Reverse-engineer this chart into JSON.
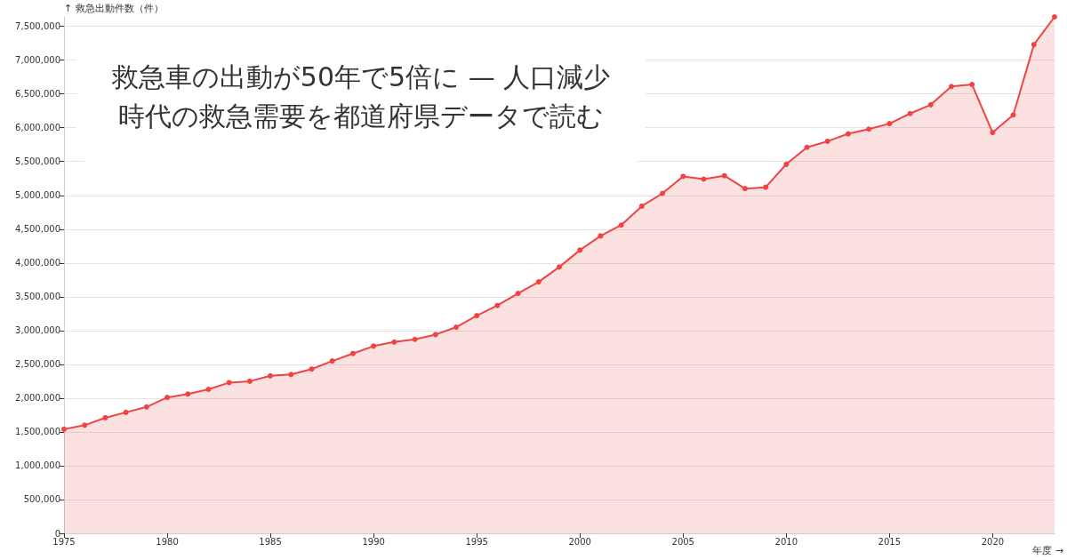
{
  "chart_data": {
    "type": "area",
    "title": "救急車の出動が50年で5倍に — 人口減少時代の救急需要を都道府県データで読む",
    "xlabel": "年度 →",
    "ylabel": "↑ 救急出動件数（件）",
    "x": [
      1975,
      1976,
      1977,
      1978,
      1979,
      1980,
      1981,
      1982,
      1983,
      1984,
      1985,
      1986,
      1987,
      1988,
      1989,
      1990,
      1991,
      1992,
      1993,
      1994,
      1995,
      1996,
      1997,
      1998,
      1999,
      2000,
      2001,
      2002,
      2003,
      2004,
      2005,
      2006,
      2007,
      2008,
      2009,
      2010,
      2011,
      2012,
      2013,
      2014,
      2015,
      2016,
      2017,
      2018,
      2019,
      2020,
      2021,
      2022,
      2023
    ],
    "values": [
      1540000,
      1600000,
      1710000,
      1790000,
      1870000,
      2010000,
      2060000,
      2130000,
      2230000,
      2250000,
      2330000,
      2350000,
      2430000,
      2550000,
      2660000,
      2770000,
      2830000,
      2870000,
      2940000,
      3050000,
      3220000,
      3370000,
      3550000,
      3720000,
      3940000,
      4190000,
      4400000,
      4560000,
      4840000,
      5030000,
      5280000,
      5240000,
      5290000,
      5100000,
      5120000,
      5460000,
      5710000,
      5800000,
      5910000,
      5980000,
      6060000,
      6210000,
      6340000,
      6610000,
      6640000,
      5930000,
      6190000,
      7230000,
      7640000
    ],
    "color": "#ef4444",
    "xlim": [
      1975,
      2023
    ],
    "xticks": [
      1975,
      1980,
      1985,
      1990,
      1995,
      2000,
      2005,
      2010,
      2015,
      2020
    ],
    "ylim": [
      0,
      7640000
    ],
    "yticks": [
      0,
      {
        "value": 500000,
        "label": "500,000"
      },
      {
        "value": 1000000,
        "label": "1,000,000"
      },
      {
        "value": 1500000,
        "label": "1,500,000"
      },
      {
        "value": 2000000,
        "label": "2,000,000"
      },
      {
        "value": 2500000,
        "label": "2,500,000"
      },
      {
        "value": 3000000,
        "label": "3,000,000"
      },
      {
        "value": 3500000,
        "label": "3,500,000"
      },
      {
        "value": 4000000,
        "label": "4,000,000"
      },
      {
        "value": 4500000,
        "label": "4,500,000"
      },
      {
        "value": 5000000,
        "label": "5,000,000"
      },
      {
        "value": 5500000,
        "label": "5,500,000"
      },
      {
        "value": 6000000,
        "label": "6,000,000"
      },
      {
        "value": 6500000,
        "label": "6,500,000"
      },
      {
        "value": 7000000,
        "label": "7,000,000"
      },
      {
        "value": 7500000,
        "label": "7,500,000"
      }
    ],
    "grid": "y",
    "marker": "circle",
    "line_style": "solid"
  }
}
